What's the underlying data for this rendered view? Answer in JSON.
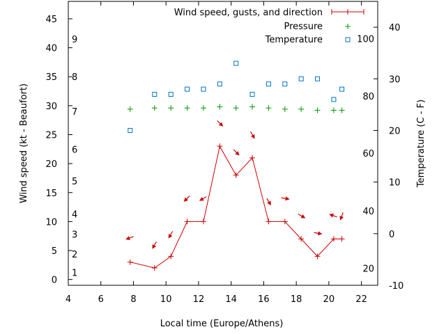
{
  "chart_data": {
    "type": "line",
    "xlabel": "Local time (Europe/Athens)",
    "ylabel_left": "Wind speed (kt - Beaufort)",
    "ylabel_right": "Temperature (C - F)",
    "xlim": [
      4,
      23
    ],
    "ylim_left": [
      -1,
      48
    ],
    "ylim_right": [
      -10,
      45
    ],
    "x_ticks": [
      4,
      6,
      8,
      10,
      12,
      14,
      16,
      18,
      20,
      22
    ],
    "y_ticks_left": [
      0,
      5,
      10,
      15,
      20,
      25,
      30,
      35,
      40,
      45
    ],
    "y_ticks_right": [
      -10,
      0,
      10,
      20,
      30,
      40
    ],
    "beaufort_labels": [
      {
        "label": "1",
        "kt": 1.2
      },
      {
        "label": "2",
        "kt": 4.4
      },
      {
        "label": "3",
        "kt": 7.8
      },
      {
        "label": "4",
        "kt": 11.3
      },
      {
        "label": "5",
        "kt": 17
      },
      {
        "label": "6",
        "kt": 22.5
      },
      {
        "label": "7",
        "kt": 29
      },
      {
        "label": "8",
        "kt": 35
      },
      {
        "label": "9",
        "kt": 41.5
      }
    ],
    "fahrenheit_labels": [
      {
        "label": "20",
        "c": -6.7
      },
      {
        "label": "40",
        "c": 4.4
      },
      {
        "label": "60",
        "c": 15.6
      },
      {
        "label": "80",
        "c": 26.7
      },
      {
        "label": "100",
        "c": 37.8
      }
    ],
    "legend": {
      "position": "top-right",
      "wind": "Wind speed, gusts, and direction",
      "pressure": "Pressure",
      "temperature": "Temperature"
    },
    "colors": {
      "wind": "#cc0000",
      "pressure": "#009900",
      "temperature": "#0072bd"
    },
    "series": [
      {
        "name": "Wind speed, gusts, and direction",
        "axis": "left",
        "x": [
          7.8,
          9.3,
          10.3,
          11.3,
          12.3,
          13.3,
          14.3,
          15.3,
          16.3,
          17.3,
          18.3,
          19.3,
          20.3,
          20.8
        ],
        "values": [
          3,
          2,
          4,
          10,
          10,
          23,
          18,
          21,
          10,
          10,
          7,
          4,
          7,
          7
        ]
      },
      {
        "name": "Pressure",
        "axis": "left",
        "x": [
          7.8,
          9.3,
          10.3,
          11.3,
          12.3,
          13.3,
          14.3,
          15.3,
          16.3,
          17.3,
          18.3,
          19.3,
          20.3,
          20.8
        ],
        "values": [
          29.4,
          29.6,
          29.6,
          29.6,
          29.6,
          29.8,
          29.6,
          29.8,
          29.6,
          29.4,
          29.4,
          29.2,
          29.2,
          29.2
        ]
      },
      {
        "name": "Temperature",
        "axis": "right",
        "x": [
          7.8,
          9.3,
          10.3,
          11.3,
          12.3,
          13.3,
          14.3,
          15.3,
          16.3,
          17.3,
          18.3,
          19.3,
          20.3,
          20.8
        ],
        "values": [
          20,
          27,
          27,
          28,
          28,
          29,
          33,
          27,
          29,
          29,
          30,
          30,
          26,
          28
        ]
      }
    ],
    "wind_direction_arrows": [
      {
        "x": 7.8,
        "kt": 7.2,
        "angle_deg": 160
      },
      {
        "x": 9.3,
        "kt": 6,
        "angle_deg": 120
      },
      {
        "x": 10.3,
        "kt": 7.8,
        "angle_deg": 120
      },
      {
        "x": 11.3,
        "kt": 14,
        "angle_deg": 135
      },
      {
        "x": 12.3,
        "kt": 14,
        "angle_deg": 150
      },
      {
        "x": 13.3,
        "kt": 27,
        "angle_deg": 45
      },
      {
        "x": 14.3,
        "kt": 22,
        "angle_deg": 45
      },
      {
        "x": 15.3,
        "kt": 25,
        "angle_deg": 60
      },
      {
        "x": 16.3,
        "kt": 13.5,
        "angle_deg": 60
      },
      {
        "x": 17.3,
        "kt": 14,
        "angle_deg": 10
      },
      {
        "x": 18.3,
        "kt": 11,
        "angle_deg": 30
      },
      {
        "x": 19.3,
        "kt": 8,
        "angle_deg": 10
      },
      {
        "x": 20.3,
        "kt": 11,
        "angle_deg": 200
      },
      {
        "x": 20.8,
        "kt": 11,
        "angle_deg": 110
      }
    ]
  }
}
